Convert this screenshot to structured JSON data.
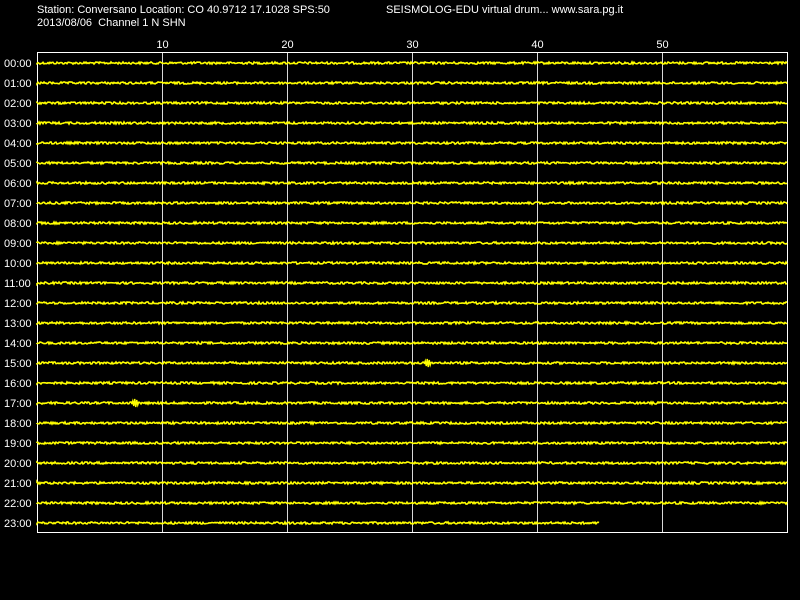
{
  "header": {
    "station_line": "Station: Conversano Location: CO 40.9712 17.1028 SPS:50",
    "program_line": "SEISMOLOG-EDU virtual drum... www.sara.pg.it",
    "date_line": "2013/08/06  Channel 1 N SHN"
  },
  "colors": {
    "background": "#000000",
    "trace": "#ffff00",
    "grid": "#ffffff",
    "text": "#ffffff"
  },
  "chart_data": {
    "type": "line",
    "title": "",
    "xlabel": "",
    "ylabel": "",
    "xlim": [
      0,
      60
    ],
    "x_ticks": [
      {
        "value": 10,
        "label": "10"
      },
      {
        "value": 20,
        "label": "20"
      },
      {
        "value": 30,
        "label": "30"
      },
      {
        "value": 40,
        "label": "40"
      },
      {
        "value": 50,
        "label": "50"
      }
    ],
    "rows": [
      {
        "label": "00:00",
        "end_minute": 60
      },
      {
        "label": "01:00",
        "end_minute": 60
      },
      {
        "label": "02:00",
        "end_minute": 60
      },
      {
        "label": "03:00",
        "end_minute": 60
      },
      {
        "label": "04:00",
        "end_minute": 60
      },
      {
        "label": "05:00",
        "end_minute": 60
      },
      {
        "label": "06:00",
        "end_minute": 60
      },
      {
        "label": "07:00",
        "end_minute": 60
      },
      {
        "label": "08:00",
        "end_minute": 60
      },
      {
        "label": "09:00",
        "end_minute": 60
      },
      {
        "label": "10:00",
        "end_minute": 60
      },
      {
        "label": "11:00",
        "end_minute": 60
      },
      {
        "label": "12:00",
        "end_minute": 60
      },
      {
        "label": "13:00",
        "end_minute": 60
      },
      {
        "label": "14:00",
        "end_minute": 60
      },
      {
        "label": "15:00",
        "end_minute": 60
      },
      {
        "label": "16:00",
        "end_minute": 60
      },
      {
        "label": "17:00",
        "end_minute": 60
      },
      {
        "label": "18:00",
        "end_minute": 60
      },
      {
        "label": "19:00",
        "end_minute": 60
      },
      {
        "label": "20:00",
        "end_minute": 60
      },
      {
        "label": "21:00",
        "end_minute": 60
      },
      {
        "label": "22:00",
        "end_minute": 60
      },
      {
        "label": "23:00",
        "end_minute": 45
      }
    ],
    "events": [
      {
        "row": "15:00",
        "minute": 31.3
      },
      {
        "row": "17:00",
        "minute": 7.9
      }
    ],
    "grid": true
  }
}
